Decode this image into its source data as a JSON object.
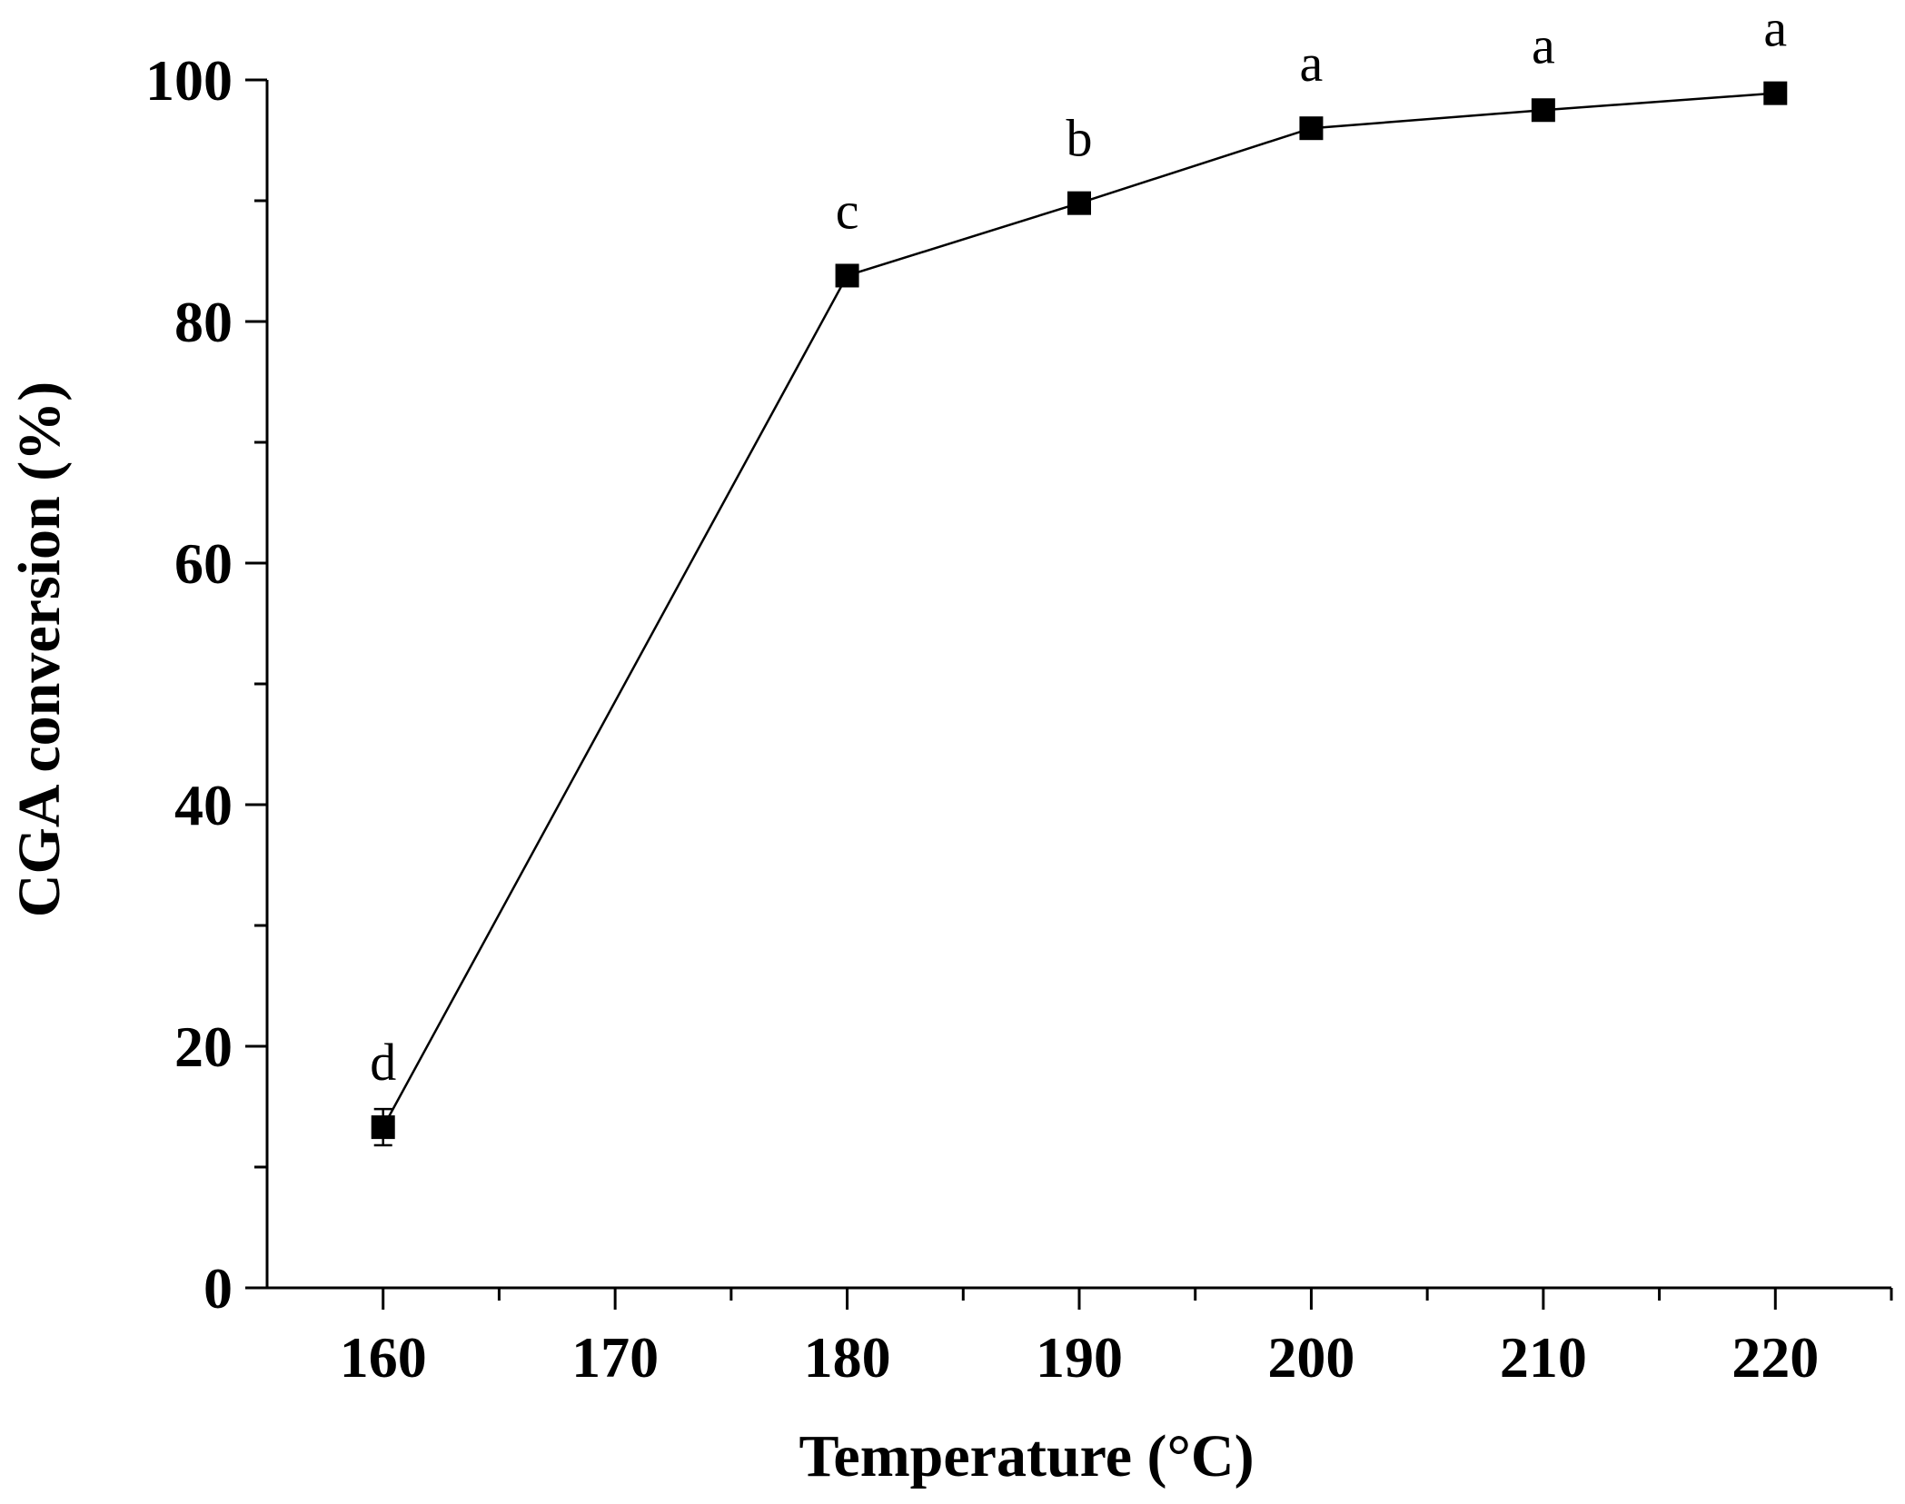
{
  "chart_data": {
    "type": "line",
    "xlabel": "Temperature (°C)",
    "ylabel": "CGA conversion (%)",
    "xlim": [
      155,
      225
    ],
    "ylim": [
      0,
      100
    ],
    "x_major_ticks": [
      160,
      170,
      180,
      190,
      200,
      210,
      220
    ],
    "x_minor_ticks": [
      165,
      175,
      185,
      195,
      205,
      215,
      225
    ],
    "y_major_ticks": [
      0,
      20,
      40,
      60,
      80,
      100
    ],
    "y_minor_ticks": [
      10,
      30,
      50,
      70,
      90
    ],
    "grid": false,
    "series": [
      {
        "marker": "square",
        "color": "#000000",
        "points": [
          {
            "x": 160,
            "y": 13.3,
            "err": 1.5,
            "label": "d"
          },
          {
            "x": 180,
            "y": 83.8,
            "err": 0.5,
            "label": "c"
          },
          {
            "x": 190,
            "y": 89.8,
            "err": 0.5,
            "label": "b"
          },
          {
            "x": 200,
            "y": 96.0,
            "err": 0.4,
            "label": "a"
          },
          {
            "x": 210,
            "y": 97.5,
            "err": 0.4,
            "label": "a"
          },
          {
            "x": 220,
            "y": 98.9,
            "err": 0.3,
            "label": "a"
          }
        ]
      }
    ]
  }
}
